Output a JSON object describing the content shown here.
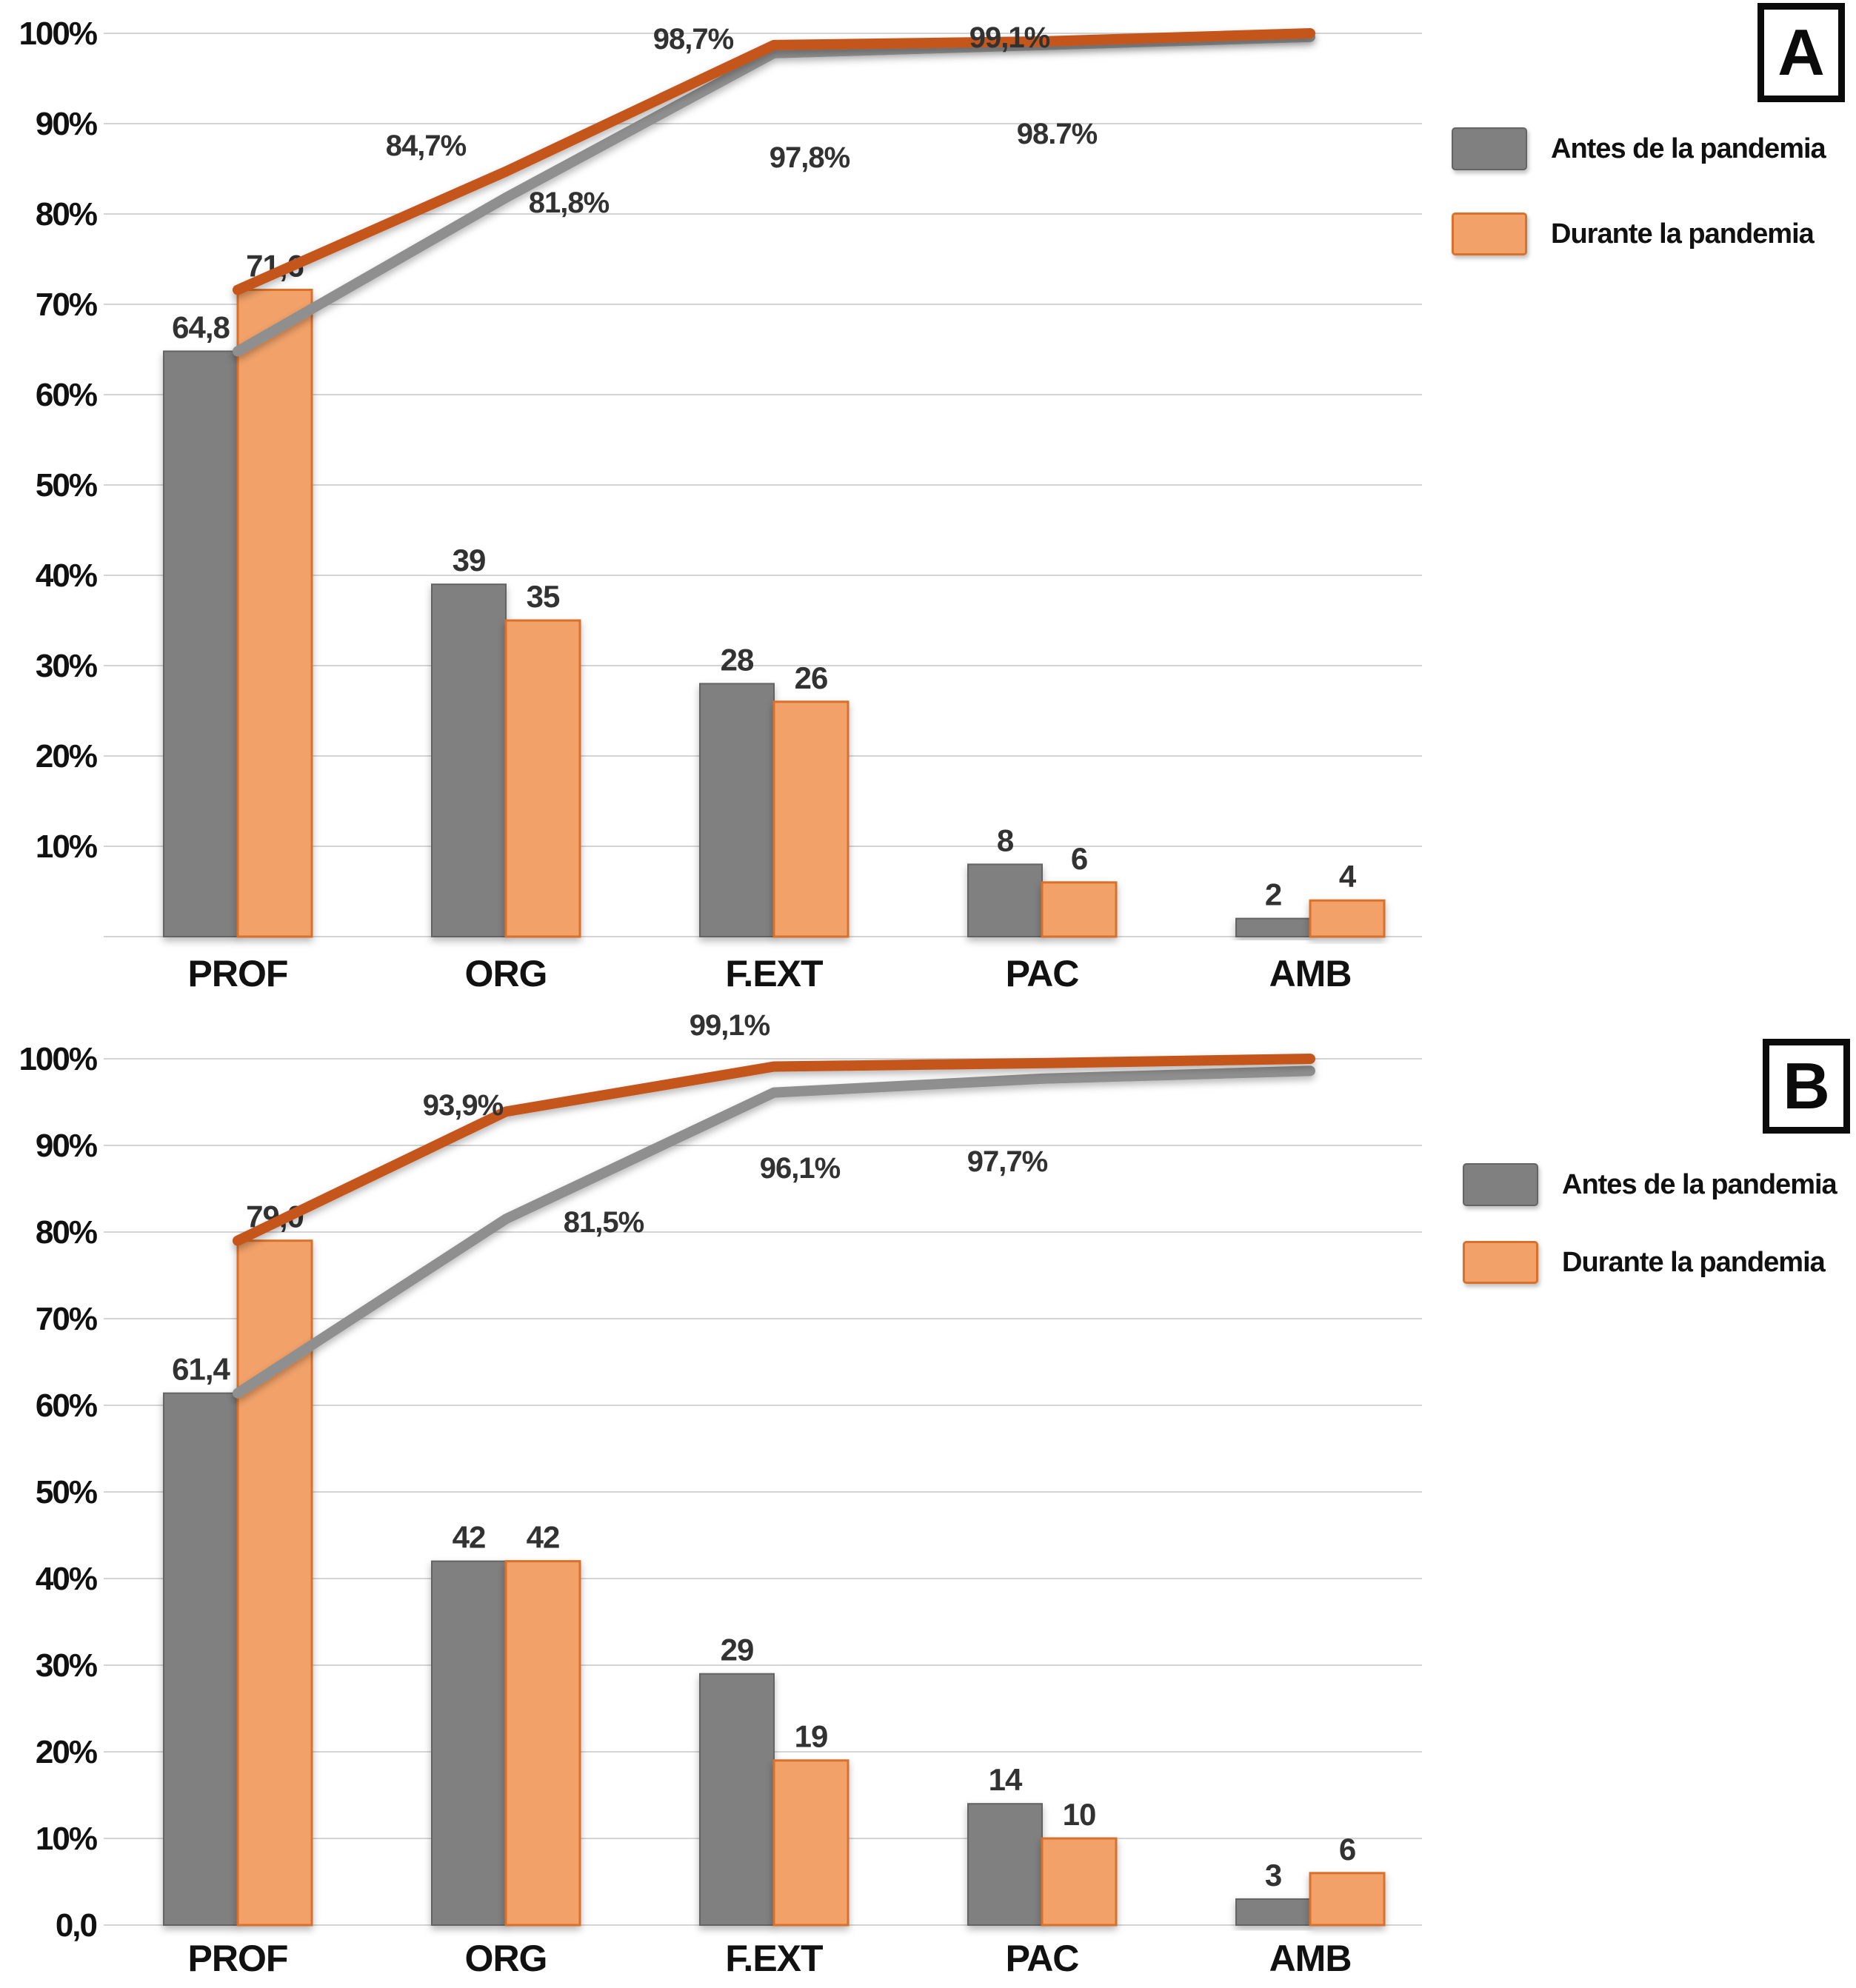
{
  "page": {
    "background": "#ffffff"
  },
  "legend": {
    "antes": "Antes de la pandemia",
    "durante": "Durante la pandemia"
  },
  "colors": {
    "bar_antes": "#808080",
    "bar_antes_border": "#646464",
    "bar_durante": "#F2A269",
    "bar_durante_border": "#D9712A",
    "line_antes": "#8F8F8F",
    "line_durante": "#C4571C",
    "gridline": "#D5D5D5",
    "axis_text": "#111111",
    "data_label": "#323232"
  },
  "chart_data": [
    {
      "panel_label": "A",
      "type": "bar",
      "subtype": "pareto (grouped bars + cumulative % lines)",
      "categories": [
        "PROF",
        "ORG",
        "F.EXT",
        "PAC",
        "AMB"
      ],
      "ylim": [
        0,
        100
      ],
      "grid": true,
      "legend_position": "right",
      "y_tick_labels": [
        "100%",
        "90%",
        "80%",
        "70%",
        "60%",
        "50%",
        "40%",
        "30%",
        "20%",
        "10%"
      ],
      "series": [
        {
          "name": "Antes de la pandemia",
          "type": "bar",
          "values": [
            64.8,
            39,
            28,
            8,
            2
          ],
          "value_labels": [
            "64,8",
            "39",
            "28",
            "8",
            "2"
          ]
        },
        {
          "name": "Durante la pandemia",
          "type": "bar",
          "values": [
            71.6,
            35,
            26,
            6,
            4
          ],
          "value_labels": [
            "71,6",
            "35",
            "26",
            "6",
            "4"
          ]
        },
        {
          "name": "Antes de la pandemia (acumulado)",
          "type": "line",
          "values": [
            64.8,
            81.8,
            97.8,
            98.7,
            99.6
          ],
          "annotations": [
            {
              "text": "81,8%",
              "x": 768,
              "y": 273
            },
            {
              "text": "97,8%",
              "x": 1093,
              "y": 212
            },
            {
              "text": "98.7%",
              "x": 1427,
              "y": 180
            }
          ]
        },
        {
          "name": "Durante la pandemia (acumulado)",
          "type": "line",
          "values": [
            71.6,
            84.7,
            98.7,
            99.1,
            100
          ],
          "annotations": [
            {
              "text": "84,7%",
              "x": 575,
              "y": 196
            },
            {
              "text": "98,7%",
              "x": 936,
              "y": 52
            },
            {
              "text": "99,1%",
              "x": 1363,
              "y": 50
            }
          ]
        }
      ]
    },
    {
      "panel_label": "B",
      "type": "bar",
      "subtype": "pareto (grouped bars + cumulative % lines)",
      "categories": [
        "PROF",
        "ORG",
        "F.EXT",
        "PAC",
        "AMB"
      ],
      "ylim": [
        0,
        100
      ],
      "grid": true,
      "legend_position": "right",
      "y_tick_labels": [
        "100%",
        "90%",
        "80%",
        "70%",
        "60%",
        "50%",
        "40%",
        "30%",
        "20%",
        "10%",
        "0,0"
      ],
      "series": [
        {
          "name": "Antes de la pandemia",
          "type": "bar",
          "values": [
            61.4,
            42,
            29,
            14,
            3
          ],
          "value_labels": [
            "61,4",
            "42",
            "29",
            "14",
            "3"
          ]
        },
        {
          "name": "Durante la pandemia",
          "type": "bar",
          "values": [
            79.0,
            42,
            19,
            10,
            6
          ],
          "value_labels": [
            "79,0",
            "42",
            "19",
            "10",
            "6"
          ]
        },
        {
          "name": "Antes de la pandemia (acumulado)",
          "type": "line",
          "values": [
            61.4,
            81.5,
            96.1,
            97.7,
            98.6
          ],
          "annotations": [
            {
              "text": "81,5%",
              "x": 815,
              "y": 1650
            },
            {
              "text": "96,1%",
              "x": 1080,
              "y": 1577
            },
            {
              "text": "97,7%",
              "x": 1360,
              "y": 1568
            }
          ]
        },
        {
          "name": "Durante la pandemia (acumulado)",
          "type": "line",
          "values": [
            79.0,
            93.9,
            99.1,
            99.5,
            100
          ],
          "annotations": [
            {
              "text": "93,9%",
              "x": 625,
              "y": 1492
            },
            {
              "text": "99,1%",
              "x": 985,
              "y": 1384
            }
          ]
        }
      ]
    }
  ]
}
